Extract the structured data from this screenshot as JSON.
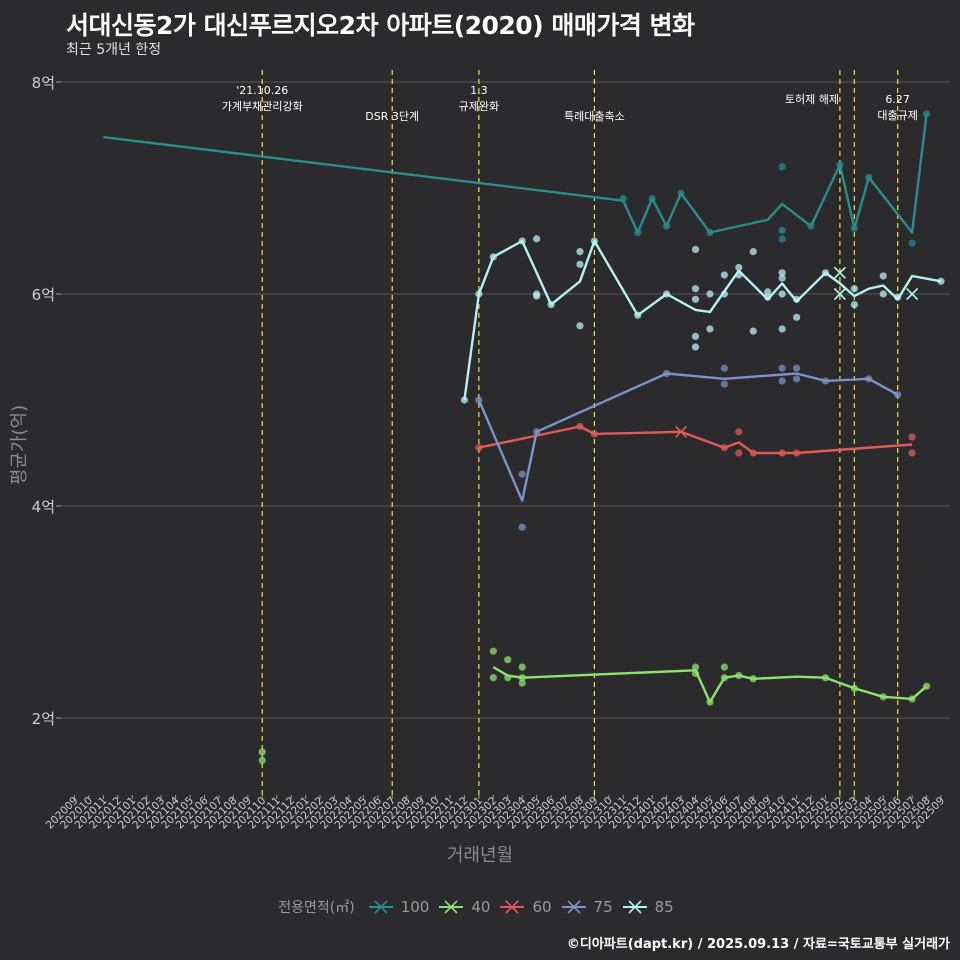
{
  "title": "서대신동2가 대신푸르지오2차 아파트(2020) 매매가격 변화",
  "subtitle": "최근 5개년 한정",
  "caption": "©디아파트(dapt.kr) / 2025.09.13 / 자료=국토교통부 실거래가",
  "chart_data": {
    "type": "line",
    "xlabel": "거래년월",
    "ylabel": "평균가(억)",
    "ylim": [
      1.3,
      8.3
    ],
    "yticks": [
      {
        "value": 2,
        "label": "2억"
      },
      {
        "value": 4,
        "label": "4억"
      },
      {
        "value": 6,
        "label": "6억"
      },
      {
        "value": 8,
        "label": "8억"
      }
    ],
    "x_categories": [
      "202009",
      "202010",
      "202011",
      "202012",
      "202101",
      "202102",
      "202103",
      "202104",
      "202105",
      "202106",
      "202107",
      "202108",
      "202109",
      "202110",
      "202111",
      "202112",
      "202201",
      "202202",
      "202203",
      "202204",
      "202205",
      "202206",
      "202207",
      "202208",
      "202209",
      "202210",
      "202211",
      "202212",
      "202301",
      "202302",
      "202303",
      "202304",
      "202305",
      "202306",
      "202307",
      "202308",
      "202309",
      "202310",
      "202311",
      "202312",
      "202401",
      "202402",
      "202403",
      "202404",
      "202405",
      "202406",
      "202407",
      "202408",
      "202409",
      "202410",
      "202411",
      "202412",
      "202501",
      "202502",
      "202503",
      "202504",
      "202505",
      "202506",
      "202507",
      "202508",
      "202509"
    ],
    "legend_title": "전용면적(㎡)",
    "legend_position": "bottom",
    "grid": true,
    "events": [
      {
        "x": "202110",
        "label": "'21.10.26\n가계부채관리강화",
        "row": "top"
      },
      {
        "x": "202207",
        "label": "DSR 3단계",
        "row": "low"
      },
      {
        "x": "202301",
        "label": "1.3\n규제완화",
        "row": "top"
      },
      {
        "x": "202309",
        "label": "특례대출축소",
        "row": "low"
      },
      {
        "x": "202502",
        "label": "토허제 해제",
        "row": "mid"
      },
      {
        "x": "202503",
        "label": "",
        "row": "mid"
      },
      {
        "x": "202506",
        "label": "6.27\n대출규제",
        "row": "mid"
      }
    ],
    "series": [
      {
        "name": "100",
        "color": "#2a8c8c",
        "points": [
          [
            "202011",
            7.48
          ],
          [
            "202311",
            6.88
          ],
          [
            "202312",
            6.58
          ],
          [
            "202401",
            6.9
          ],
          [
            "202402",
            6.64
          ],
          [
            "202403",
            6.95
          ],
          [
            "202405",
            6.58
          ],
          [
            "202409",
            6.7
          ],
          [
            "202410",
            6.85
          ],
          [
            "202412",
            6.64
          ],
          [
            "202502",
            7.22
          ],
          [
            "202503",
            6.62
          ],
          [
            "202504",
            7.1
          ],
          [
            "202507",
            6.58
          ],
          [
            "202508",
            7.7
          ]
        ],
        "scatter": [
          [
            "202311",
            6.9
          ],
          [
            "202312",
            6.58
          ],
          [
            "202401",
            6.9
          ],
          [
            "202402",
            6.64
          ],
          [
            "202403",
            6.95
          ],
          [
            "202405",
            6.58
          ],
          [
            "202410",
            7.2
          ],
          [
            "202410",
            6.6
          ],
          [
            "202410",
            6.52
          ],
          [
            "202412",
            6.64
          ],
          [
            "202502",
            7.22
          ],
          [
            "202503",
            6.62
          ],
          [
            "202504",
            7.1
          ],
          [
            "202507",
            6.48
          ],
          [
            "202508",
            7.7
          ]
        ],
        "crosses": []
      },
      {
        "name": "40",
        "color": "#90e070",
        "points": [
          [
            "202302",
            2.48
          ],
          [
            "202303",
            2.4
          ],
          [
            "202304",
            2.38
          ],
          [
            "202404",
            2.45
          ],
          [
            "202405",
            2.15
          ],
          [
            "202406",
            2.38
          ],
          [
            "202407",
            2.4
          ],
          [
            "202408",
            2.37
          ],
          [
            "202411",
            2.39
          ],
          [
            "202501",
            2.38
          ],
          [
            "202503",
            2.28
          ],
          [
            "202505",
            2.2
          ],
          [
            "202507",
            2.18
          ],
          [
            "202508",
            2.3
          ]
        ],
        "scatter": [
          [
            "202110",
            1.68
          ],
          [
            "202110",
            1.6
          ],
          [
            "202302",
            2.63
          ],
          [
            "202302",
            2.38
          ],
          [
            "202303",
            2.55
          ],
          [
            "202303",
            2.38
          ],
          [
            "202304",
            2.48
          ],
          [
            "202304",
            2.38
          ],
          [
            "202304",
            2.33
          ],
          [
            "202404",
            2.48
          ],
          [
            "202404",
            2.42
          ],
          [
            "202405",
            2.15
          ],
          [
            "202406",
            2.48
          ],
          [
            "202406",
            2.38
          ],
          [
            "202407",
            2.4
          ],
          [
            "202408",
            2.37
          ],
          [
            "202501",
            2.38
          ],
          [
            "202503",
            2.28
          ],
          [
            "202505",
            2.2
          ],
          [
            "202507",
            2.18
          ],
          [
            "202508",
            2.3
          ]
        ],
        "crosses": []
      },
      {
        "name": "60",
        "color": "#e05a5a",
        "points": [
          [
            "202301",
            4.55
          ],
          [
            "202308",
            4.75
          ],
          [
            "202309",
            4.68
          ],
          [
            "202403",
            4.7
          ],
          [
            "202406",
            4.55
          ],
          [
            "202407",
            4.6
          ],
          [
            "202408",
            4.5
          ],
          [
            "202410",
            4.5
          ],
          [
            "202411",
            4.5
          ],
          [
            "202507",
            4.58
          ]
        ],
        "scatter": [
          [
            "202301",
            4.55
          ],
          [
            "202308",
            4.75
          ],
          [
            "202309",
            4.68
          ],
          [
            "202406",
            4.55
          ],
          [
            "202407",
            4.7
          ],
          [
            "202407",
            4.5
          ],
          [
            "202408",
            4.5
          ],
          [
            "202410",
            4.5
          ],
          [
            "202411",
            4.5
          ],
          [
            "202507",
            4.65
          ],
          [
            "202507",
            4.5
          ]
        ],
        "crosses": [
          [
            "202403",
            4.7
          ]
        ]
      },
      {
        "name": "75",
        "color": "#7b93c7",
        "points": [
          [
            "202301",
            5.0
          ],
          [
            "202304",
            4.05
          ],
          [
            "202305",
            4.7
          ],
          [
            "202402",
            5.25
          ],
          [
            "202406",
            5.2
          ],
          [
            "202411",
            5.25
          ],
          [
            "202501",
            5.18
          ],
          [
            "202504",
            5.2
          ],
          [
            "202506",
            5.05
          ]
        ],
        "scatter": [
          [
            "202301",
            5.0
          ],
          [
            "202304",
            4.3
          ],
          [
            "202304",
            3.8
          ],
          [
            "202305",
            4.7
          ],
          [
            "202402",
            5.25
          ],
          [
            "202406",
            5.3
          ],
          [
            "202406",
            5.15
          ],
          [
            "202410",
            5.3
          ],
          [
            "202410",
            5.18
          ],
          [
            "202411",
            5.3
          ],
          [
            "202411",
            5.2
          ],
          [
            "202501",
            5.18
          ],
          [
            "202504",
            5.2
          ],
          [
            "202506",
            5.05
          ]
        ],
        "crosses": []
      },
      {
        "name": "85",
        "color": "#b8f0f0",
        "points": [
          [
            "202212",
            5.0
          ],
          [
            "202301",
            6.0
          ],
          [
            "202302",
            6.35
          ],
          [
            "202304",
            6.5
          ],
          [
            "202306",
            5.9
          ],
          [
            "202308",
            6.12
          ],
          [
            "202309",
            6.5
          ],
          [
            "202312",
            5.8
          ],
          [
            "202402",
            6.0
          ],
          [
            "202404",
            5.85
          ],
          [
            "202405",
            5.83
          ],
          [
            "202407",
            6.22
          ],
          [
            "202409",
            5.95
          ],
          [
            "202410",
            6.1
          ],
          [
            "202411",
            5.93
          ],
          [
            "202501",
            6.2
          ],
          [
            "202502",
            6.1
          ],
          [
            "202503",
            5.98
          ],
          [
            "202504",
            6.05
          ],
          [
            "202505",
            6.08
          ],
          [
            "202506",
            5.95
          ],
          [
            "202507",
            6.17
          ],
          [
            "202509",
            6.12
          ]
        ],
        "scatter": [
          [
            "202212",
            5.0
          ],
          [
            "202301",
            6.0
          ],
          [
            "202302",
            6.35
          ],
          [
            "202304",
            6.5
          ],
          [
            "202305",
            6.52
          ],
          [
            "202305",
            6.0
          ],
          [
            "202305",
            5.98
          ],
          [
            "202306",
            5.9
          ],
          [
            "202308",
            6.4
          ],
          [
            "202308",
            6.28
          ],
          [
            "202308",
            5.7
          ],
          [
            "202309",
            6.5
          ],
          [
            "202312",
            5.8
          ],
          [
            "202402",
            6.0
          ],
          [
            "202404",
            6.42
          ],
          [
            "202404",
            6.05
          ],
          [
            "202404",
            5.95
          ],
          [
            "202404",
            5.6
          ],
          [
            "202404",
            5.5
          ],
          [
            "202405",
            6.0
          ],
          [
            "202405",
            5.67
          ],
          [
            "202406",
            6.18
          ],
          [
            "202406",
            6.0
          ],
          [
            "202407",
            6.25
          ],
          [
            "202407",
            6.18
          ],
          [
            "202408",
            6.4
          ],
          [
            "202408",
            5.65
          ],
          [
            "202409",
            6.02
          ],
          [
            "202409",
            5.97
          ],
          [
            "202410",
            6.2
          ],
          [
            "202410",
            6.15
          ],
          [
            "202410",
            6.0
          ],
          [
            "202410",
            5.67
          ],
          [
            "202411",
            5.95
          ],
          [
            "202411",
            5.78
          ],
          [
            "202501",
            6.2
          ],
          [
            "202503",
            5.9
          ],
          [
            "202503",
            6.05
          ],
          [
            "202505",
            6.17
          ],
          [
            "202505",
            6.0
          ],
          [
            "202506",
            5.97
          ],
          [
            "202509",
            6.12
          ]
        ],
        "crosses": [
          [
            "202502",
            6.2
          ],
          [
            "202502",
            6.0
          ],
          [
            "202507",
            6.0
          ]
        ]
      }
    ]
  }
}
